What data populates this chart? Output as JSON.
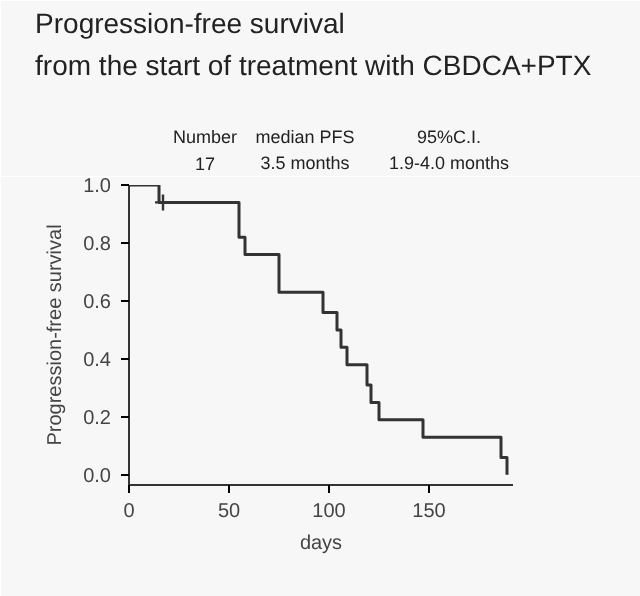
{
  "chart_data": {
    "type": "step",
    "title": "Progression-free survival\nfrom the start of treatment   with CBDCA+PTX",
    "xlabel": "days",
    "ylabel": "Progression-free survival",
    "annotations": [
      "Number",
      "median PFS",
      "95%C.I.",
      "17",
      "3.5 months",
      "1.9-4.0 months"
    ],
    "series": [
      {
        "color": "#333333",
        "x": [
          0,
          15,
          55,
          58,
          75,
          97,
          104,
          106,
          109,
          119,
          121,
          125,
          147,
          186,
          189
        ],
        "values": [
          1.0,
          0.94,
          0.82,
          0.76,
          0.63,
          0.56,
          0.5,
          0.44,
          0.38,
          0.31,
          0.25,
          0.19,
          0.13,
          0.06,
          0.0
        ]
      },
      {
        "type": "scatter",
        "marker": "cross",
        "color": "#333333",
        "x": [
          17
        ],
        "values": [
          0.94
        ]
      }
    ],
    "xlim": [
      0,
      192
    ],
    "ylim": [
      -0.035,
      1.0
    ],
    "xticks": [
      0,
      50,
      100,
      150
    ],
    "yticks": [
      {
        "value": 0,
        "label": "0.0"
      },
      {
        "value": 0.2,
        "label": "0.2"
      },
      {
        "value": 0.4,
        "label": "0.4"
      },
      {
        "value": 0.6,
        "label": "0.6"
      },
      {
        "value": 0.8,
        "label": "0.8"
      },
      {
        "value": 1,
        "label": "1.0"
      }
    ],
    "grid": false
  }
}
